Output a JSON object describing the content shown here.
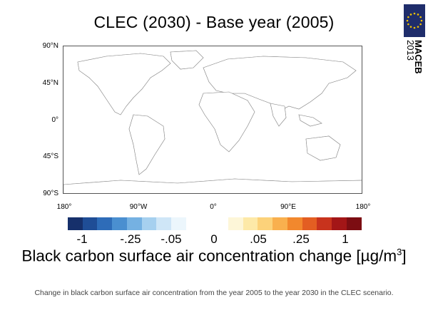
{
  "title": "CLEC (2030) - Base year (2005)",
  "logo": {
    "line1": "MACEB",
    "line2": "2013",
    "colors": {
      "background": "#1f2d6b",
      "stars": "#f2c200"
    }
  },
  "map": {
    "lat_labels": [
      "90°N",
      "45°N",
      "0°",
      "45°S",
      "90°S"
    ],
    "lon_labels": [
      "180°",
      "90°W",
      "0°",
      "90°E",
      "180°"
    ],
    "land_color": "#ffffff",
    "border_color": "#888888"
  },
  "colorbar": {
    "negative_colors": [
      "#16306b",
      "#1f4d96",
      "#2e6cb8",
      "#4a8fd0",
      "#75b1e2",
      "#a6d0ef",
      "#cfe6f7",
      "#ecf6fc"
    ],
    "positive_colors": [
      "#fdf6d8",
      "#fde9a8",
      "#fcd27a",
      "#f9b04e",
      "#f2882d",
      "#e35e22",
      "#c8331d",
      "#a31617",
      "#7c0d12"
    ],
    "tick_labels": [
      "-1",
      "-.25",
      "-.05",
      "0",
      ".05",
      ".25",
      "1"
    ]
  },
  "unit_label": {
    "text": "Black carbon surface air concentration change [µg/m",
    "superscript": "3",
    "suffix": "]"
  },
  "caption": "Change in black carbon surface air concentration from the year 2005 to the year 2030 in the CLEC scenario."
}
